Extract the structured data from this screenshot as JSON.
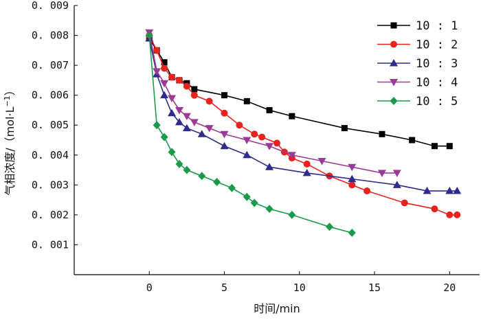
{
  "chart_data": {
    "type": "line",
    "xlabel": "时间/min",
    "ylabel_main": "气相浓度/（mol·L",
    "ylabel_sup": "−1",
    "ylabel_end": "）",
    "xlim": [
      -5,
      22
    ],
    "ylim": [
      0,
      0.009
    ],
    "x_ticks": [
      0,
      5,
      10,
      15,
      20
    ],
    "x_tick_labels": [
      "0",
      "5",
      "10",
      "15",
      "20"
    ],
    "y_ticks": [
      0.001,
      0.002,
      0.003,
      0.004,
      0.005,
      0.006,
      0.007,
      0.008,
      0.009
    ],
    "y_tick_labels": [
      "0. 001",
      "0. 002",
      "0. 003",
      "0. 004",
      "0. 005",
      "0. 006",
      "0. 007",
      "0. 008",
      "0. 009"
    ],
    "legend_position": "top-right",
    "grid": false,
    "series": [
      {
        "name": "10 : 1",
        "color": "#000000",
        "marker": "square",
        "x": [
          0,
          0.5,
          1,
          1.5,
          2,
          2.5,
          3,
          5,
          6.5,
          8,
          9.5,
          13,
          15.5,
          17.5,
          19,
          20
        ],
        "y": [
          0.0079,
          0.0075,
          0.0071,
          0.0066,
          0.0065,
          0.0064,
          0.0062,
          0.006,
          0.0058,
          0.0055,
          0.0053,
          0.0049,
          0.0047,
          0.0045,
          0.0043,
          0.0043
        ]
      },
      {
        "name": "10 : 2",
        "color": "#e8231e",
        "marker": "circle",
        "x": [
          0,
          0.5,
          1,
          1.5,
          2,
          2.5,
          3,
          4,
          5,
          6,
          7,
          7.5,
          8.5,
          9,
          9.5,
          10.5,
          12,
          13.5,
          14.5,
          17,
          19,
          20,
          20.5
        ],
        "y": [
          0.008,
          0.0075,
          0.0069,
          0.0066,
          0.0065,
          0.0063,
          0.006,
          0.0058,
          0.0054,
          0.005,
          0.0047,
          0.0046,
          0.0044,
          0.0041,
          0.0039,
          0.0037,
          0.0033,
          0.003,
          0.0028,
          0.0024,
          0.0022,
          0.002,
          0.002
        ]
      },
      {
        "name": "10 : 3",
        "color": "#2e2a8e",
        "marker": "triangle-up",
        "x": [
          0,
          0.5,
          1,
          1.5,
          2,
          2.5,
          3.5,
          5,
          6.5,
          8,
          10.5,
          13.5,
          16.5,
          18.5,
          20,
          20.5
        ],
        "y": [
          0.0079,
          0.0067,
          0.006,
          0.0054,
          0.0051,
          0.0049,
          0.0047,
          0.0043,
          0.004,
          0.0036,
          0.0034,
          0.0032,
          0.003,
          0.0028,
          0.0028,
          0.0028
        ]
      },
      {
        "name": "10 : 4",
        "color": "#9b3a96",
        "marker": "triangle-down",
        "x": [
          0,
          0.5,
          1,
          1.5,
          2,
          2.5,
          3,
          4,
          5,
          6.5,
          8,
          9.5,
          11.5,
          13.5,
          15.5,
          16.5
        ],
        "y": [
          0.0081,
          0.0068,
          0.0064,
          0.0059,
          0.0055,
          0.0053,
          0.0051,
          0.0049,
          0.0047,
          0.0045,
          0.0043,
          0.004,
          0.0038,
          0.0036,
          0.0034,
          0.0034
        ]
      },
      {
        "name": "10 : 5",
        "color": "#1a9a4a",
        "marker": "diamond",
        "x": [
          0,
          0.5,
          1,
          1.5,
          2,
          2.5,
          3.5,
          4.5,
          5.5,
          6.5,
          7,
          8,
          9.5,
          12,
          13.5
        ],
        "y": [
          0.008,
          0.005,
          0.0046,
          0.0041,
          0.0037,
          0.0035,
          0.0033,
          0.0031,
          0.0029,
          0.0026,
          0.0024,
          0.0022,
          0.002,
          0.0016,
          0.0014
        ]
      }
    ]
  }
}
